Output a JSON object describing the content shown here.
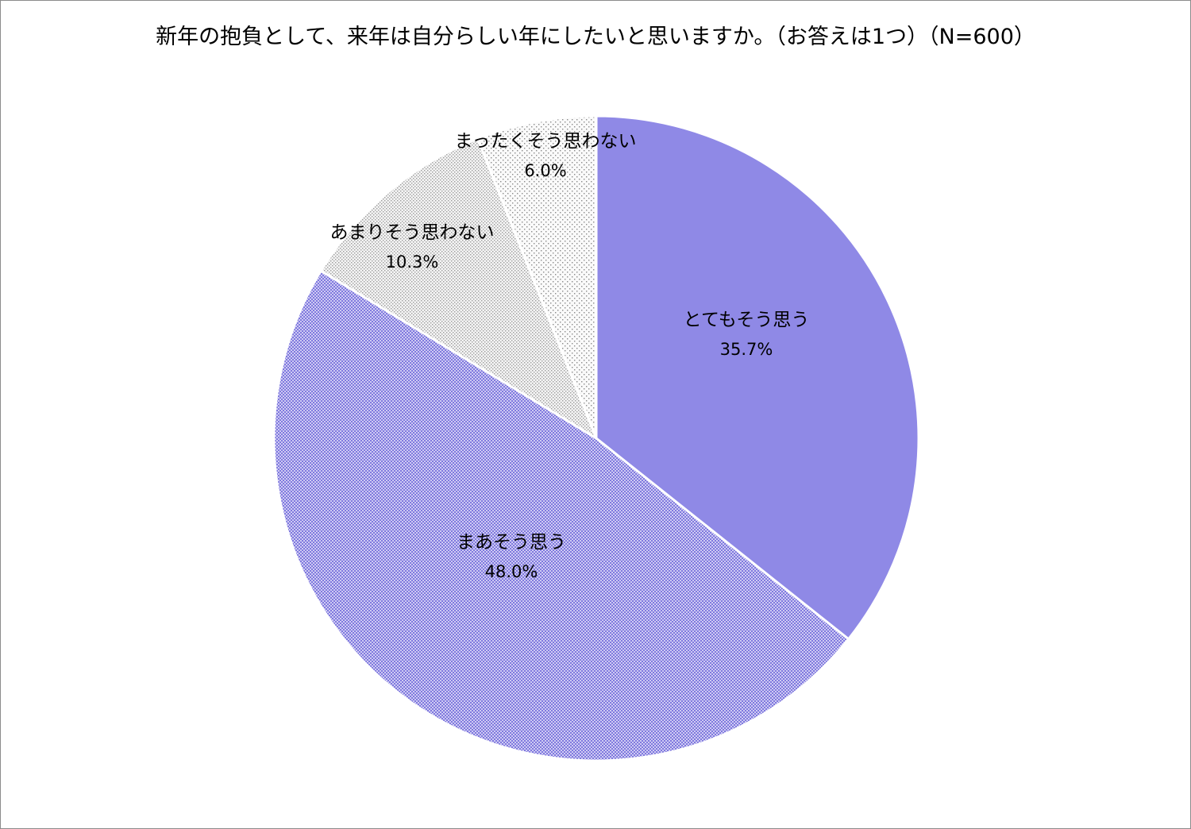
{
  "chart_data": {
    "type": "pie",
    "title": "新年の抱負として、来年は自分らしい年にしたいと思いますか。（お答えは1つ）（N=600）",
    "slices": [
      {
        "label": "とてもそう思う",
        "value": 35.7,
        "value_label": "35.7%",
        "color": "#8f89e6",
        "pattern": "solid"
      },
      {
        "label": "まあそう思う",
        "value": 48.0,
        "value_label": "48.0%",
        "color": "#8f89e6",
        "pattern": "dense-dots"
      },
      {
        "label": "あまりそう思わない",
        "value": 10.3,
        "value_label": "10.3%",
        "color": "#9a9a9a",
        "pattern": "light-dots"
      },
      {
        "label": "まったくそう思わない",
        "value": 6.0,
        "value_label": "6.0%",
        "color": "#8a8a8a",
        "pattern": "sparse-dots"
      }
    ],
    "start_angle": "12 o'clock",
    "direction": "clockwise",
    "legend": "none",
    "labels": "inside"
  }
}
